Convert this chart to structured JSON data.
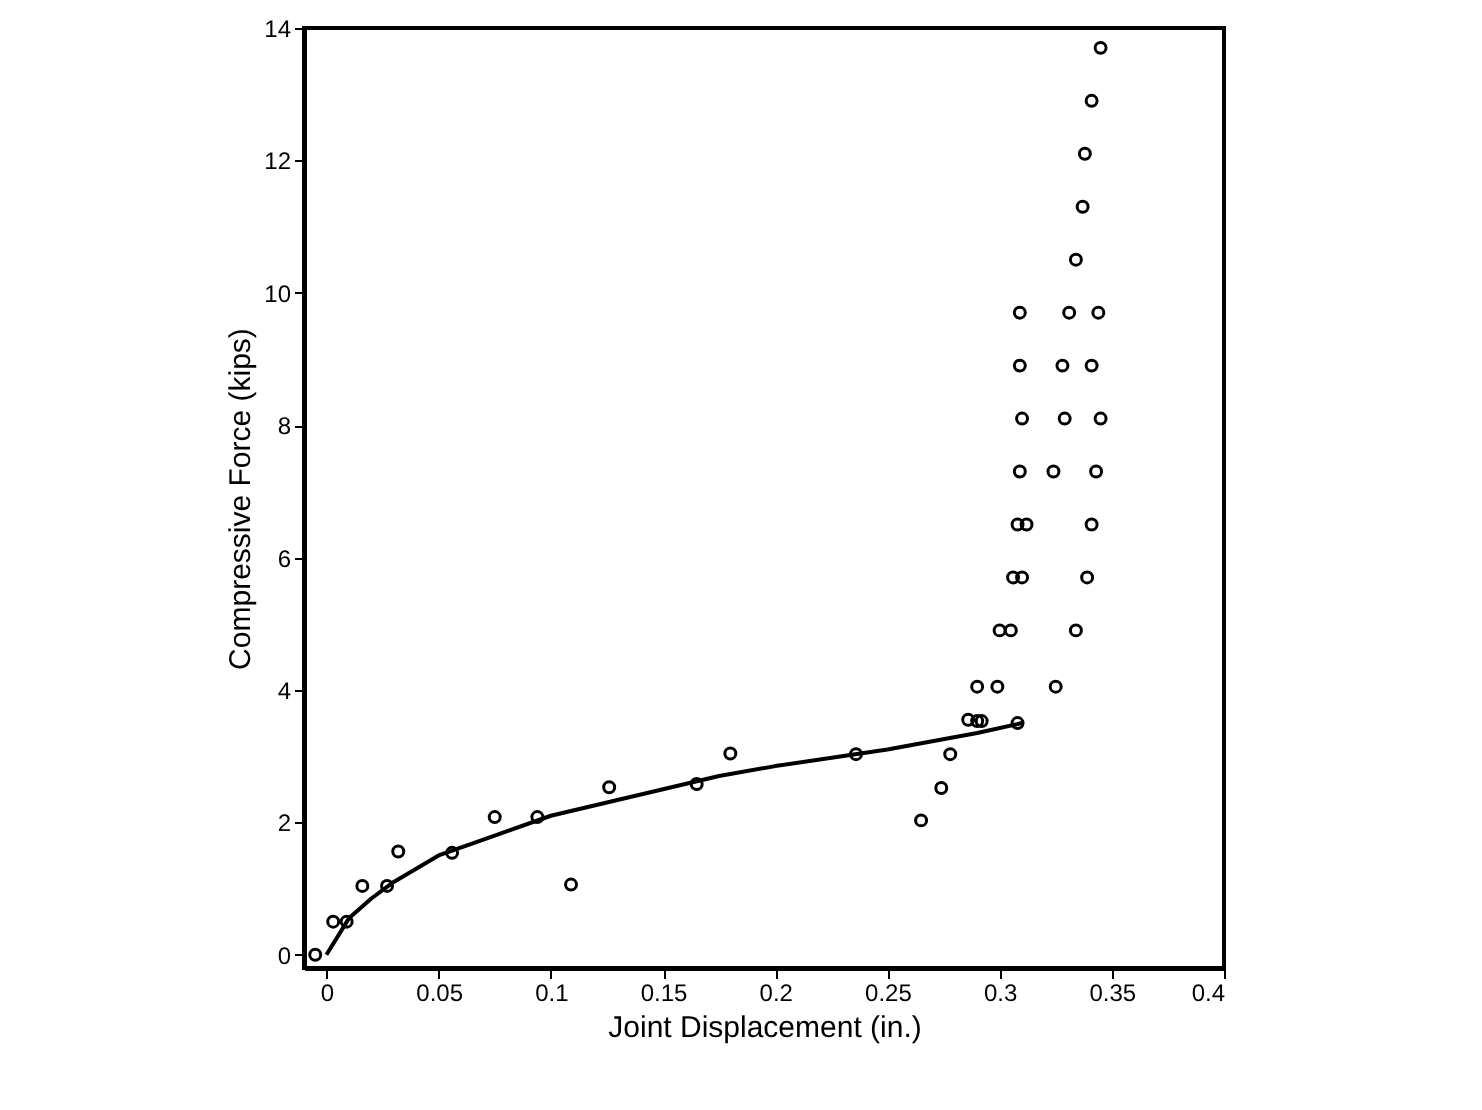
{
  "chart_data": {
    "type": "scatter",
    "xlabel": "Joint Displacement (in.)",
    "ylabel": "Compressive Force (kips)",
    "xlim": [
      -0.01,
      0.4
    ],
    "ylim": [
      -0.2,
      14
    ],
    "xticks": [
      0,
      0.05,
      0.1,
      0.15,
      0.2,
      0.25,
      0.3,
      0.35,
      0.4
    ],
    "yticks": [
      0,
      2,
      4,
      6,
      8,
      10,
      12,
      14
    ],
    "grid": false,
    "series": [
      {
        "color": "#000000",
        "marker": "circle",
        "x": [
          -0.005,
          0.003,
          0.009,
          0.016,
          0.027,
          0.032,
          0.056,
          0.075,
          0.094,
          0.109,
          0.126,
          0.165,
          0.18,
          0.236,
          0.265,
          0.274,
          0.278,
          0.286,
          0.29,
          0.292,
          0.308,
          0.29,
          0.299,
          0.325,
          0.3,
          0.305,
          0.334,
          0.306,
          0.31,
          0.339,
          0.308,
          0.312,
          0.341,
          0.309,
          0.324,
          0.343,
          0.31,
          0.329,
          0.345,
          0.309,
          0.328,
          0.341,
          0.309,
          0.331,
          0.344,
          0.334,
          0.337,
          0.338,
          0.341,
          0.345
        ],
        "values": [
          0,
          0.5,
          0.5,
          1.04,
          1.04,
          1.56,
          1.54,
          2.08,
          2.08,
          1.06,
          2.53,
          2.58,
          3.04,
          3.03,
          2.03,
          2.52,
          3.03,
          3.55,
          3.53,
          3.53,
          3.5,
          4.05,
          4.05,
          4.05,
          4.9,
          4.9,
          4.9,
          5.7,
          5.7,
          5.7,
          6.5,
          6.5,
          6.5,
          7.3,
          7.3,
          7.3,
          8.1,
          8.1,
          8.1,
          8.9,
          8.9,
          8.9,
          9.7,
          9.7,
          9.7,
          10.5,
          11.3,
          12.1,
          12.9,
          13.7
        ]
      },
      {
        "type": "line",
        "color": "#000000",
        "marker": "none",
        "line_style": "solid",
        "x": [
          0,
          0.01,
          0.02,
          0.03,
          0.05,
          0.075,
          0.1,
          0.125,
          0.15,
          0.175,
          0.2,
          0.25,
          0.29,
          0.31
        ],
        "values": [
          0,
          0.55,
          0.85,
          1.1,
          1.5,
          1.8,
          2.1,
          2.3,
          2.5,
          2.7,
          2.85,
          3.1,
          3.35,
          3.5
        ]
      }
    ]
  }
}
